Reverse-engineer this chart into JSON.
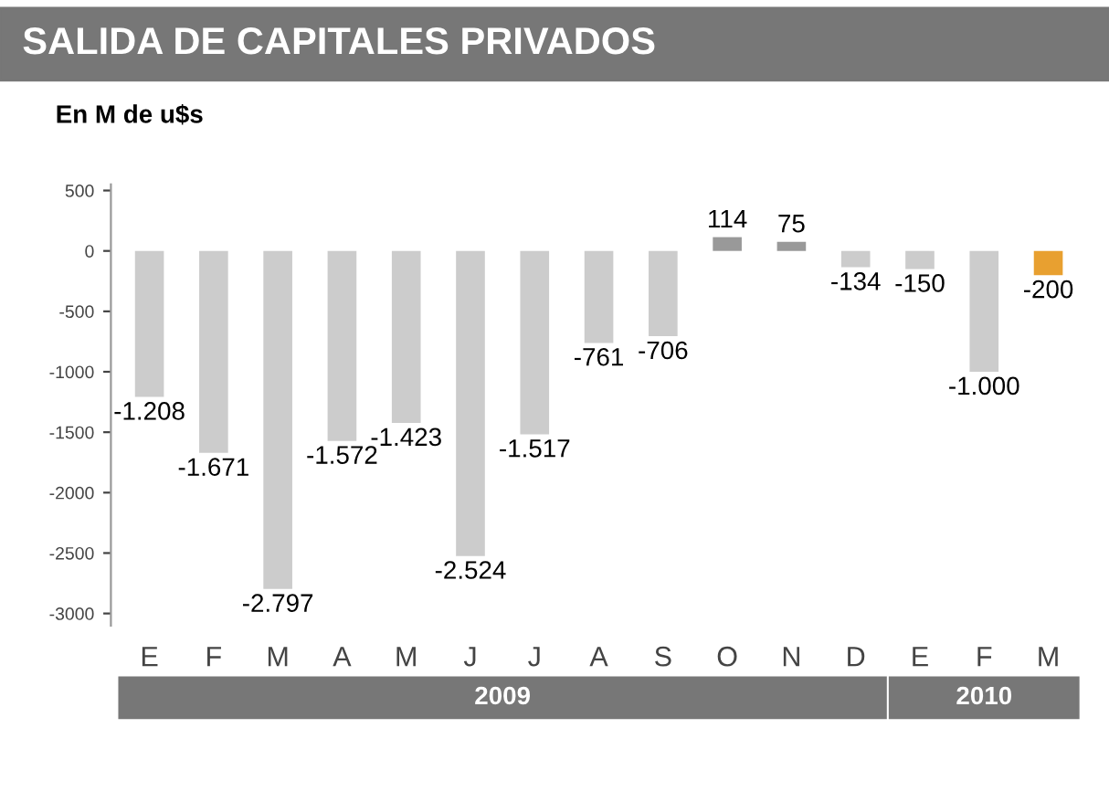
{
  "chart_data": {
    "type": "bar",
    "title": "SALIDA DE CAPITALES PRIVADOS",
    "subtitle": "En M de u$s",
    "categories": [
      "E",
      "F",
      "M",
      "A",
      "M",
      "J",
      "J",
      "A",
      "S",
      "O",
      "N",
      "D",
      "E",
      "F",
      "M"
    ],
    "values": [
      -1208,
      -1671,
      -2797,
      -1572,
      -1423,
      -2524,
      -1517,
      -761,
      -706,
      114,
      75,
      -134,
      -150,
      -1000,
      -200
    ],
    "value_labels": [
      "-1.208",
      "-1.671",
      "-2.797",
      "-1.572",
      "-1.423",
      "-2.524",
      "-1.517",
      "-761",
      "-706",
      "114",
      "75",
      "-134",
      "-150",
      "-1.000",
      "-200"
    ],
    "colors": [
      "#cccccc",
      "#cccccc",
      "#cccccc",
      "#cccccc",
      "#cccccc",
      "#cccccc",
      "#cccccc",
      "#cccccc",
      "#cccccc",
      "#999999",
      "#999999",
      "#cccccc",
      "#cccccc",
      "#cccccc",
      "#e8a030"
    ],
    "annotations": [
      "2009",
      "2010"
    ],
    "ylim": [
      -3100,
      550
    ],
    "yticks": [
      500,
      0,
      -500,
      -1000,
      -1500,
      -2000,
      -2500,
      -3000
    ],
    "grid": false
  }
}
